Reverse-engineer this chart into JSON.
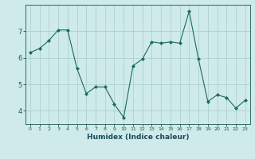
{
  "xlabel": "Humidex (Indice chaleur)",
  "ylabel": "",
  "x": [
    0,
    1,
    2,
    3,
    4,
    5,
    6,
    7,
    8,
    9,
    10,
    11,
    12,
    13,
    14,
    15,
    16,
    17,
    18,
    19,
    20,
    21,
    22,
    23
  ],
  "y": [
    6.2,
    6.35,
    6.65,
    7.05,
    7.05,
    5.6,
    4.65,
    4.9,
    4.9,
    4.25,
    3.75,
    5.7,
    5.95,
    6.6,
    6.55,
    6.6,
    6.55,
    7.75,
    5.95,
    4.35,
    4.6,
    4.5,
    4.1,
    4.4
  ],
  "line_color": "#1a6b5a",
  "marker": "D",
  "marker_size": 2.0,
  "bg_color": "#ceeaea",
  "grid_color": "#b0d0d0",
  "tick_color": "#1a5a4a",
  "label_color": "#1a4a5a",
  "ylim": [
    3.5,
    8.0
  ],
  "xlim": [
    -0.5,
    23.5
  ],
  "yticks": [
    4,
    5,
    6,
    7
  ],
  "xticks": [
    0,
    1,
    2,
    3,
    4,
    5,
    6,
    7,
    8,
    9,
    10,
    11,
    12,
    13,
    14,
    15,
    16,
    17,
    18,
    19,
    20,
    21,
    22,
    23
  ]
}
